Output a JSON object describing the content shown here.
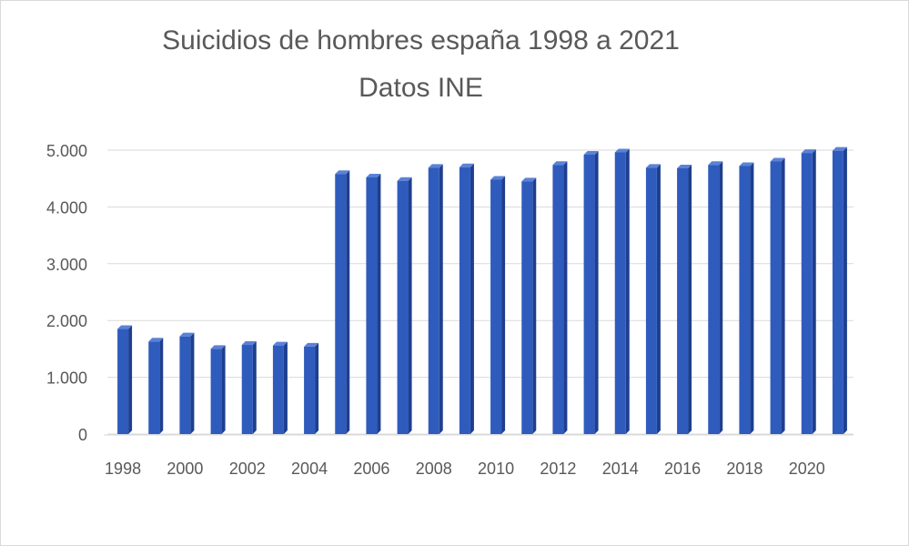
{
  "chart_data": {
    "type": "bar",
    "title": "Suicidios de hombres españa 1998 a 2021",
    "subtitle": "Datos INE",
    "categories": [
      "1998",
      "1999",
      "2000",
      "2001",
      "2002",
      "2003",
      "2004",
      "2005",
      "2006",
      "2007",
      "2008",
      "2009",
      "2010",
      "2011",
      "2012",
      "2013",
      "2014",
      "2015",
      "2016",
      "2017",
      "2018",
      "2019",
      "2020",
      "2021"
    ],
    "x_tick_labels": [
      "1998",
      "2000",
      "2002",
      "2004",
      "2006",
      "2008",
      "2010",
      "2012",
      "2014",
      "2016",
      "2018",
      "2020"
    ],
    "values": [
      1850,
      1630,
      1720,
      1500,
      1570,
      1560,
      1540,
      4580,
      4520,
      4460,
      4690,
      4700,
      4480,
      4450,
      4740,
      4920,
      4960,
      4690,
      4680,
      4740,
      4720,
      4800,
      4950,
      4990
    ],
    "y_tick_labels": [
      "0",
      "1.000",
      "2.000",
      "3.000",
      "4.000",
      "5.000"
    ],
    "xlabel": "",
    "ylabel": "",
    "ylim": [
      0,
      5000
    ],
    "grid": true,
    "legend": "none",
    "bar_color": "#2f5bbd",
    "bar_side_color": "#1e3f8f",
    "bar_top_color": "#5a82d6"
  }
}
